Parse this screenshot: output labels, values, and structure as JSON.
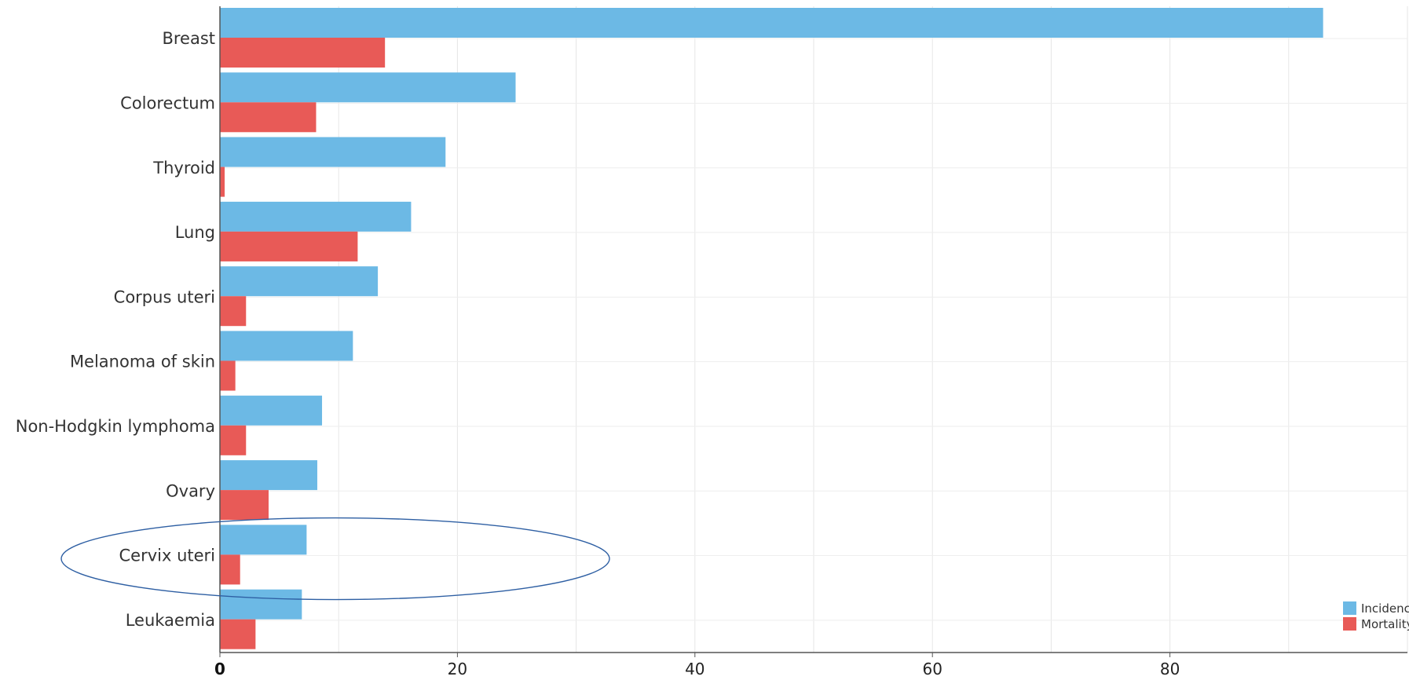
{
  "chart_data": {
    "type": "bar",
    "orientation": "horizontal",
    "categories": [
      "Breast",
      "Colorectum",
      "Thyroid",
      "Lung",
      "Corpus uteri",
      "Melanoma of skin",
      "Non-Hodgkin lymphoma",
      "Ovary",
      "Cervix uteri",
      "Leukaemia"
    ],
    "series": [
      {
        "name": "Incidence",
        "color": "#6cb9e5",
        "values": [
          92.9,
          24.9,
          19.0,
          16.1,
          13.3,
          11.2,
          8.6,
          8.2,
          7.3,
          6.9
        ]
      },
      {
        "name": "Mortality",
        "color": "#e85a57",
        "values": [
          13.9,
          8.1,
          0.4,
          11.6,
          2.2,
          1.3,
          2.2,
          4.1,
          1.7,
          3.0
        ]
      }
    ],
    "xlim": [
      0,
      100
    ],
    "xticks": [
      0,
      20,
      40,
      60,
      80
    ],
    "grid": true,
    "legend_position": "bottom-right",
    "annotation": "ellipse around Cervix uteri"
  }
}
